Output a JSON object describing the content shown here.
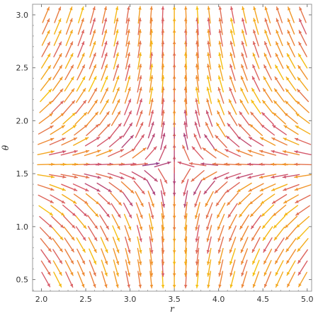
{
  "chart_data": {
    "type": "vector_field",
    "title": "",
    "xlabel": "r",
    "ylabel": "θ",
    "xlim": [
      1.9,
      5.05
    ],
    "ylim": [
      0.39,
      3.1
    ],
    "xticks": [
      2.0,
      2.5,
      3.0,
      3.5,
      4.0,
      4.5,
      5.0
    ],
    "xtick_labels": [
      "2.0",
      "2.5",
      "3.0",
      "3.5",
      "4.0",
      "4.5",
      "5.0"
    ],
    "yticks": [
      0.5,
      1.0,
      1.5,
      2.0,
      2.5,
      3.0
    ],
    "ytick_labels": [
      "0.5",
      "1.0",
      "1.5",
      "2.0",
      "2.5",
      "3.0"
    ],
    "grid": {
      "x_start": 2.05,
      "x_end": 4.95,
      "x_count": 23,
      "y_start": 0.5,
      "y_end": 3.0,
      "y_count": 24
    },
    "field_center": {
      "r": 3.5,
      "theta": 1.5708
    },
    "color_scale": [
      "#5a2ca0",
      "#a8417f",
      "#d85a69",
      "#f08d2e",
      "#f6c20e"
    ],
    "frame_color": "#999999",
    "background": "#ffffff"
  }
}
